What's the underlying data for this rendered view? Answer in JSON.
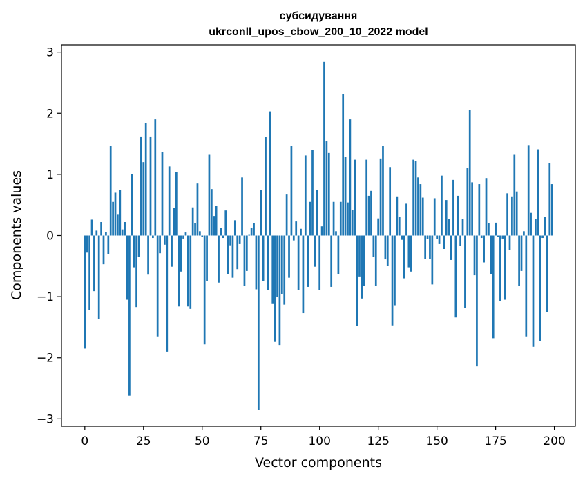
{
  "chart_data": {
    "type": "bar",
    "title_line1": "субсидування",
    "title_line2": "ukrconll_upos_cbow_200_10_2022 model",
    "xlabel": "Vector components",
    "ylabel": "Components values",
    "xlim": [
      -9.95,
      208.95
    ],
    "ylim": [
      -3.12,
      3.12
    ],
    "x_ticks": [
      0,
      25,
      50,
      75,
      100,
      125,
      150,
      175,
      200
    ],
    "x_tick_labels": [
      "0",
      "25",
      "50",
      "75",
      "100",
      "125",
      "150",
      "175",
      "200"
    ],
    "y_ticks": [
      -3,
      -2,
      -1,
      0,
      1,
      2,
      3
    ],
    "y_tick_labels": [
      "−3",
      "−2",
      "−1",
      "0",
      "1",
      "2",
      "3"
    ],
    "bar_color": "#1f77b4",
    "grid": false,
    "legend": "none",
    "x": [
      0,
      1,
      2,
      3,
      4,
      5,
      6,
      7,
      8,
      9,
      10,
      11,
      12,
      13,
      14,
      15,
      16,
      17,
      18,
      19,
      20,
      21,
      22,
      23,
      24,
      25,
      26,
      27,
      28,
      29,
      30,
      31,
      32,
      33,
      34,
      35,
      36,
      37,
      38,
      39,
      40,
      41,
      42,
      43,
      44,
      45,
      46,
      47,
      48,
      49,
      50,
      51,
      52,
      53,
      54,
      55,
      56,
      57,
      58,
      59,
      60,
      61,
      62,
      63,
      64,
      65,
      66,
      67,
      68,
      69,
      70,
      71,
      72,
      73,
      74,
      75,
      76,
      77,
      78,
      79,
      80,
      81,
      82,
      83,
      84,
      85,
      86,
      87,
      88,
      89,
      90,
      91,
      92,
      93,
      94,
      95,
      96,
      97,
      98,
      99,
      100,
      101,
      102,
      103,
      104,
      105,
      106,
      107,
      108,
      109,
      110,
      111,
      112,
      113,
      114,
      115,
      116,
      117,
      118,
      119,
      120,
      121,
      122,
      123,
      124,
      125,
      126,
      127,
      128,
      129,
      130,
      131,
      132,
      133,
      134,
      135,
      136,
      137,
      138,
      139,
      140,
      141,
      142,
      143,
      144,
      145,
      146,
      147,
      148,
      149,
      150,
      151,
      152,
      153,
      154,
      155,
      156,
      157,
      158,
      159,
      160,
      161,
      162,
      163,
      164,
      165,
      166,
      167,
      168,
      169,
      170,
      171,
      172,
      173,
      174,
      175,
      176,
      177,
      178,
      179,
      180,
      181,
      182,
      183,
      184,
      185,
      186,
      187,
      188,
      189,
      190,
      191,
      192,
      193,
      194,
      195,
      196,
      197,
      198,
      199
    ],
    "values": [
      -1.85,
      -0.28,
      -1.22,
      0.26,
      -0.91,
      0.08,
      -1.37,
      0.22,
      -0.47,
      0.06,
      -0.3,
      1.47,
      0.55,
      0.7,
      0.34,
      0.74,
      0.1,
      0.22,
      -1.05,
      -2.62,
      1.0,
      -0.52,
      -1.17,
      -0.35,
      1.62,
      1.2,
      1.84,
      -0.64,
      1.62,
      -0.04,
      1.9,
      -1.65,
      -0.29,
      1.37,
      -0.15,
      -1.9,
      1.13,
      -0.51,
      0.45,
      1.04,
      -1.16,
      -0.59,
      -0.05,
      0.05,
      -1.16,
      -1.2,
      0.46,
      0.2,
      0.85,
      0.07,
      -0.02,
      -1.78,
      -0.74,
      1.32,
      0.76,
      0.32,
      0.48,
      -0.77,
      0.12,
      -0.04,
      0.41,
      -0.63,
      -0.16,
      -0.69,
      0.25,
      -0.55,
      -0.14,
      0.95,
      -0.82,
      -0.58,
      0.01,
      0.13,
      0.2,
      -0.88,
      -2.85,
      0.74,
      -0.74,
      1.61,
      -0.89,
      2.03,
      -1.12,
      -1.74,
      -1.01,
      -1.79,
      -0.96,
      -1.13,
      0.67,
      -0.69,
      1.47,
      -0.08,
      0.23,
      -0.89,
      0.11,
      -1.27,
      1.31,
      -0.84,
      0.55,
      1.4,
      -0.51,
      0.74,
      -0.89,
      0.15,
      2.84,
      1.54,
      1.35,
      -0.84,
      0.55,
      0.07,
      -0.63,
      0.55,
      2.31,
      1.29,
      0.54,
      1.9,
      0.42,
      1.24,
      -1.48,
      -0.67,
      -1.03,
      -0.82,
      1.24,
      0.65,
      0.73,
      -0.35,
      -0.82,
      0.28,
      1.26,
      1.47,
      -0.39,
      -0.5,
      1.12,
      -1.47,
      -1.14,
      0.64,
      0.31,
      -0.07,
      -0.7,
      0.52,
      -0.52,
      -0.59,
      1.24,
      1.22,
      0.95,
      0.84,
      0.62,
      -0.38,
      -0.06,
      -0.38,
      -0.8,
      0.61,
      -0.06,
      -0.14,
      0.98,
      -0.22,
      0.58,
      0.27,
      -0.4,
      0.91,
      -1.34,
      0.65,
      -0.17,
      0.27,
      -1.19,
      1.1,
      2.05,
      0.87,
      -0.65,
      -2.14,
      0.84,
      -0.04,
      -0.44,
      0.94,
      0.2,
      -0.63,
      -1.68,
      0.21,
      -0.02,
      -1.07,
      -0.05,
      -1.05,
      0.69,
      -0.24,
      0.64,
      1.32,
      0.72,
      -0.82,
      -0.58,
      0.07,
      -1.65,
      1.48,
      0.37,
      -1.82,
      0.27,
      1.41,
      -1.73,
      -0.04,
      0.31,
      -1.25,
      1.19,
      0.84
    ]
  }
}
